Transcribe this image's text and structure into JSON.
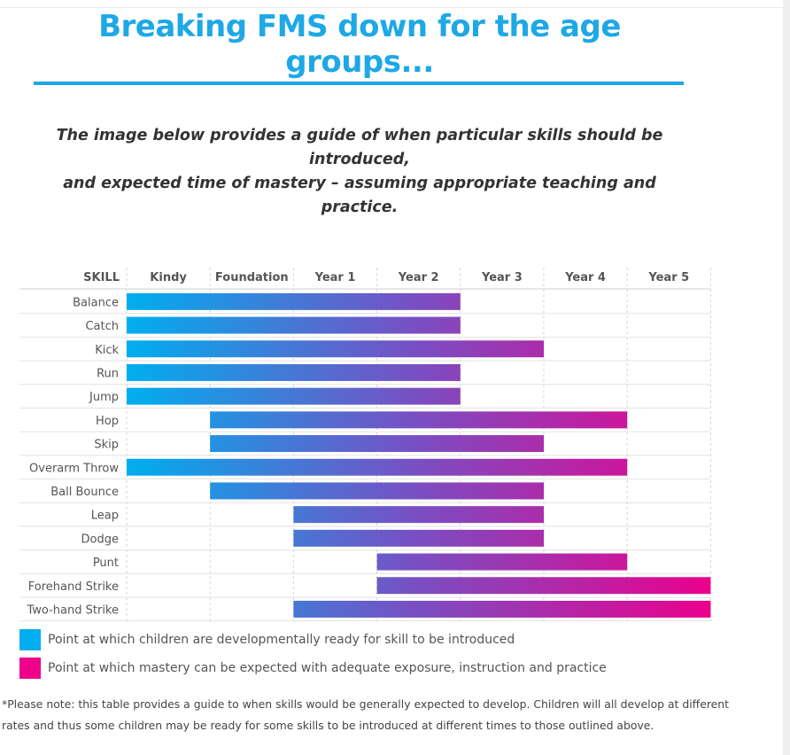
{
  "page": {
    "title": "Breaking FMS down for the age groups...",
    "subtitle_line1": "The image below provides a guide of when particular skills should be introduced,",
    "subtitle_line2": "and expected time of mastery – assuming appropriate teaching and practice.",
    "note_line1": "*Please note: this table provides a guide to when skills would be generally expected to develop. Children will all develop at different",
    "note_line2": "rates and thus some children may be ready for some skills to be introduced at different times to those outlined above."
  },
  "colors": {
    "title": "#1da8e6",
    "introduced": "#00aeef",
    "mastery": "#ec008c",
    "text": "#555555"
  },
  "chart_data": {
    "type": "bar",
    "orientation": "horizontal-range",
    "skill_header": "SKILL",
    "categories": [
      "Kindy",
      "Foundation",
      "Year 1",
      "Year 2",
      "Year 3",
      "Year 4",
      "Year 5"
    ],
    "skills": [
      {
        "name": "Balance",
        "introduced": "Kindy",
        "mastery": "Year 2"
      },
      {
        "name": "Catch",
        "introduced": "Kindy",
        "mastery": "Year 2"
      },
      {
        "name": "Kick",
        "introduced": "Kindy",
        "mastery": "Year 3"
      },
      {
        "name": "Run",
        "introduced": "Kindy",
        "mastery": "Year 2"
      },
      {
        "name": "Jump",
        "introduced": "Kindy",
        "mastery": "Year 2"
      },
      {
        "name": "Hop",
        "introduced": "Foundation",
        "mastery": "Year 4"
      },
      {
        "name": "Skip",
        "introduced": "Foundation",
        "mastery": "Year 3"
      },
      {
        "name": "Overarm Throw",
        "introduced": "Kindy",
        "mastery": "Year 4"
      },
      {
        "name": "Ball Bounce",
        "introduced": "Foundation",
        "mastery": "Year 3"
      },
      {
        "name": "Leap",
        "introduced": "Year 1",
        "mastery": "Year 3"
      },
      {
        "name": "Dodge",
        "introduced": "Year 1",
        "mastery": "Year 3"
      },
      {
        "name": "Punt",
        "introduced": "Year 2",
        "mastery": "Year 4"
      },
      {
        "name": "Forehand Strike",
        "introduced": "Year 2",
        "mastery": "Year 5"
      },
      {
        "name": "Two-hand Strike",
        "introduced": "Year 1",
        "mastery": "Year 5"
      }
    ],
    "legend": [
      {
        "key": "introduced",
        "label": "Point at which children are developmentally ready for skill to be introduced"
      },
      {
        "key": "mastery",
        "label": "Point at which mastery can be expected with adequate exposure, instruction and practice"
      }
    ]
  }
}
